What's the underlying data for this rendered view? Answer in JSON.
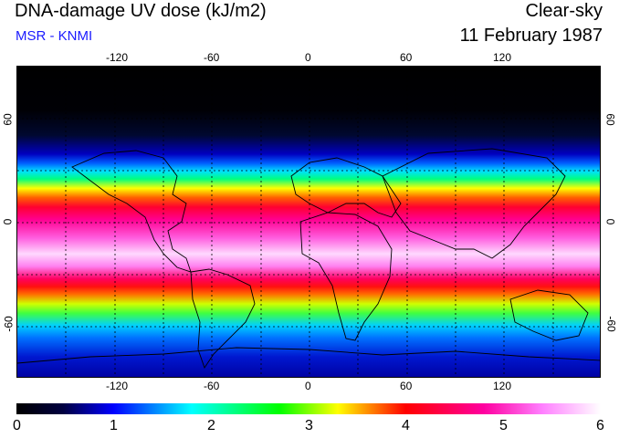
{
  "header": {
    "title": "DNA-damage UV dose (kJ/m2)",
    "subtitle": "MSR - KNMI",
    "mode": "Clear-sky",
    "date": "11 February 1987"
  },
  "map": {
    "lon_ticks": [
      "-120",
      "-60",
      "0",
      "60",
      "120"
    ],
    "lat_ticks_left": [
      "60",
      "0",
      "-60"
    ],
    "lat_ticks_right": [
      "60",
      "0",
      "-60"
    ],
    "lon_range": [
      -180,
      180
    ],
    "lat_range": [
      -90,
      90
    ]
  },
  "colorbar": {
    "labels": [
      "0",
      "1",
      "2",
      "3",
      "4",
      "5",
      "6"
    ],
    "range": [
      0,
      6
    ],
    "colors": [
      "#000000",
      "#0000ff",
      "#00ffff",
      "#00ff00",
      "#ffff00",
      "#ff0000",
      "#ff00ff",
      "#ffffff"
    ]
  }
}
